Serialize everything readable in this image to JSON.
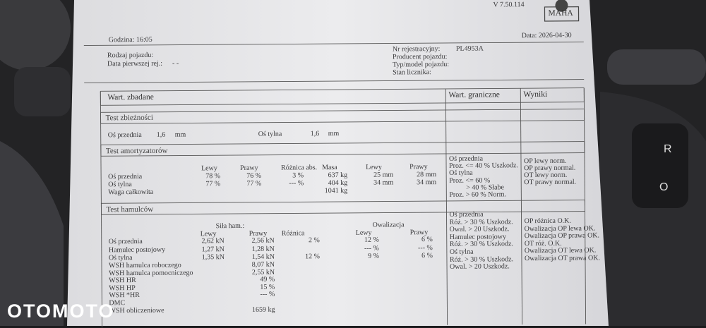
{
  "header": {
    "version": "V 7.50.114",
    "logo": "MAHA",
    "time": "Godzina: 16:05",
    "date": "Data: 2026-04-30"
  },
  "vehicle": {
    "left": [
      {
        "label": "Rodzaj pojazdu:"
      },
      {
        "label": "Data pierwszej rej.:",
        "value": "- -"
      }
    ],
    "right": [
      {
        "label": "Nr rejestracyjny:",
        "value": "PL4953A"
      },
      {
        "label": "Producent pojazdu:"
      },
      {
        "label": "Typ/model pojazdu:"
      },
      {
        "label": "Stan licznika:"
      }
    ]
  },
  "table": {
    "columns": [
      "Wart. zbadane",
      "Wart. graniczne",
      "Wyniki"
    ],
    "alignment": {
      "title": "Test zbieżności",
      "rows": [
        [
          "Oś przednia",
          "1,6",
          "mm"
        ],
        [
          "Oś tylna",
          "1,6",
          "mm"
        ]
      ]
    },
    "shocks": {
      "title": "Test amortyzatorów",
      "headers": [
        "Lewy",
        "Prawy",
        "Różnica abs.",
        "Masa",
        "Lewy",
        "Prawy"
      ],
      "rows": [
        [
          "Oś przednia",
          "78 %",
          "76 %",
          "3 %",
          "637 kg",
          "25 mm",
          "28 mm"
        ],
        [
          "Oś tylna",
          "77 %",
          "77 %",
          "--- %",
          "404 kg",
          "34 mm",
          "34 mm"
        ]
      ],
      "total": {
        "label": "Waga całkowita",
        "value": "1041 kg"
      },
      "limits": [
        "Oś przednia",
        "Proz. <= 40 % Uszkodz.",
        "Oś tylna",
        "Proz. <= 60 %",
        "> 40 % Słabe",
        "Proz. > 60 % Norm."
      ],
      "results": [
        "OP lewy norm.",
        "OP prawy normal.",
        "OT lewy norm.",
        "OT prawy normal."
      ]
    },
    "brakes": {
      "title": "Test hamulców",
      "groups": [
        "Siła ham.:",
        "Owalizacja"
      ],
      "headers": [
        "Lewy",
        "Prawy",
        "Różnica",
        "Lewy",
        "Prawy"
      ],
      "rows": [
        [
          "Oś przednia",
          "2,62 kN",
          "2,56 kN",
          "2 %",
          "12 %",
          "6 %"
        ],
        [
          "Hamulec postojowy",
          "1,27 kN",
          "1,28 kN",
          null,
          "--- %",
          "--- %"
        ],
        [
          "Oś tylna",
          "1,35 kN",
          "1,54 kN",
          "12 %",
          "9 %",
          "6 %"
        ]
      ],
      "summary": [
        {
          "label": "WSH hamulca roboczego",
          "value": "8,07 kN"
        },
        {
          "label": "WSH hamulca pomocniczego",
          "value": "2,55 kN"
        },
        {
          "label": "WSH HR",
          "value": "49 %"
        },
        {
          "label": "WSH HP",
          "value": "15 %"
        },
        {
          "label": "WSH *HR",
          "value": "--- %"
        },
        {
          "label": "DMC"
        },
        {
          "label": "WSH obliczeniowe",
          "value": "1659 kg"
        }
      ],
      "limits": [
        "Oś przednia",
        "Róż. > 30 % Uszkodz.",
        "Owal. > 20 Uszkodz.",
        "Hamulec postojowy",
        "Róż. > 30 % Uszkodz.",
        "Oś tylna",
        "Róż. > 30 % Uszkodz.",
        "Owal. > 20 Uszkodz."
      ],
      "results": [
        "OP różnica O.K.",
        "Owalizacja OP lewa OK.",
        "Owalizacja OP prawa OK.",
        "OT róż. O.K.",
        "Owalizacja OT lewa OK.",
        "Owalizacja OT prawa OK."
      ]
    }
  },
  "watermark": "OTOMOTO"
}
